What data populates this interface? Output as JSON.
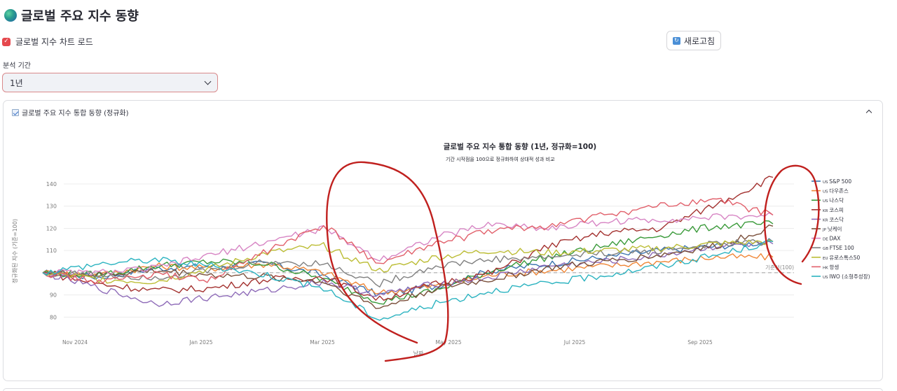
{
  "page": {
    "title": "글로벌 주요 지수 동향",
    "title_icon": "globe-icon"
  },
  "controls": {
    "load_chart_checkbox": {
      "label": "글로벌 지수 차트 로드",
      "checked": true,
      "color": "#e5484d"
    },
    "refresh_button": {
      "label": "새로고침",
      "icon": "refresh-icon"
    },
    "period": {
      "label": "분석 기간",
      "selected": "1년"
    }
  },
  "expander": {
    "title": "글로벌 주요 지수 통합 동향 (정규화)",
    "icon": "chart-increasing-icon",
    "expanded": true
  },
  "chart_data": {
    "type": "line",
    "title": "글로벌 주요 지수 통합 동향 (1년, 정규화=100)",
    "subtitle": "기간 시작점을 100으로 정규화하여 상대적 성과 비교",
    "xlabel": "날짜",
    "ylabel": "정규화된 지수 (기준=100)",
    "ylim": [
      76,
      146
    ],
    "yticks": [
      80,
      90,
      100,
      110,
      120,
      130,
      140
    ],
    "x_ticks": [
      "Nov 2024",
      "Jan 2025",
      "Mar 2025",
      "May 2025",
      "Jul 2025",
      "Sep 2025"
    ],
    "grid": true,
    "legend_position": "right",
    "baseline": {
      "value": 100,
      "label": "기준선(100)"
    },
    "x": [
      "2024-10",
      "2024-11",
      "2024-12",
      "2025-01",
      "2025-02",
      "2025-03",
      "2025-04a",
      "2025-04b",
      "2025-05",
      "2025-06",
      "2025-07",
      "2025-08",
      "2025-09",
      "2025-10"
    ],
    "series": [
      {
        "name": "US S&P 500",
        "flag": "US",
        "label": "S&P 500",
        "color": "#3b75af",
        "values": [
          100,
          98,
          102,
          103,
          104,
          99,
          90,
          94,
          101,
          104,
          107,
          110,
          112,
          114
        ]
      },
      {
        "name": "US 다우존스",
        "flag": "US",
        "label": "다우존스",
        "color": "#ef8636",
        "values": [
          100,
          99,
          103,
          102,
          104,
          100,
          91,
          94,
          99,
          101,
          103,
          105,
          107,
          107
        ]
      },
      {
        "name": "US 나스닥",
        "flag": "US",
        "label": "나스닥",
        "color": "#3a9a3a",
        "values": [
          100,
          99,
          103,
          105,
          104,
          97,
          87,
          92,
          101,
          107,
          112,
          117,
          121,
          122
        ]
      },
      {
        "name": "KR 코스피",
        "flag": "KR",
        "label": "코스피",
        "color": "#a3312f",
        "values": [
          100,
          95,
          92,
          93,
          97,
          98,
          88,
          95,
          100,
          112,
          118,
          120,
          131,
          143
        ]
      },
      {
        "name": "KR 코스닥",
        "flag": "KR",
        "label": "코스닥",
        "color": "#8e6bb8",
        "values": [
          100,
          93,
          86,
          89,
          92,
          96,
          90,
          95,
          98,
          103,
          105,
          108,
          112,
          113
        ]
      },
      {
        "name": "JP 닛케이",
        "flag": "JP",
        "label": "닛케이",
        "color": "#7a4f3a",
        "values": [
          100,
          99,
          101,
          99,
          98,
          96,
          84,
          93,
          97,
          102,
          105,
          108,
          112,
          121
        ]
      },
      {
        "name": "DE DAX",
        "flag": "DE",
        "label": "DAX",
        "color": "#d785c4",
        "values": [
          100,
          100,
          102,
          108,
          114,
          120,
          106,
          116,
          122,
          120,
          123,
          124,
          125,
          126
        ]
      },
      {
        "name": "GB FTSE 100",
        "flag": "GB",
        "label": "FTSE 100",
        "color": "#7f7f7f",
        "values": [
          100,
          99,
          98,
          101,
          105,
          104,
          95,
          103,
          106,
          107,
          109,
          110,
          113,
          114
        ]
      },
      {
        "name": "EU 유로스톡스50",
        "flag": "EU",
        "label": "유로스톡스50",
        "color": "#bcbd35",
        "values": [
          100,
          97,
          96,
          102,
          109,
          112,
          101,
          107,
          110,
          109,
          110,
          111,
          113,
          114
        ]
      },
      {
        "name": "HK 항셍",
        "flag": "HK",
        "label": "항셍",
        "color": "#e15f6a",
        "values": [
          100,
          96,
          99,
          97,
          110,
          121,
          104,
          113,
          119,
          121,
          126,
          130,
          133,
          126
        ]
      },
      {
        "name": "US IWO (소형주성장)",
        "flag": "US",
        "label": "IWO (소형주성장)",
        "color": "#2bb3c0",
        "values": [
          100,
          104,
          106,
          103,
          99,
          93,
          79,
          86,
          92,
          95,
          99,
          103,
          108,
          114
        ]
      }
    ]
  },
  "annotations": {
    "description": "Red hand-drawn circles highlight the April 2025 dip and the latest Oct 2025 values",
    "color": "#c0201e"
  }
}
